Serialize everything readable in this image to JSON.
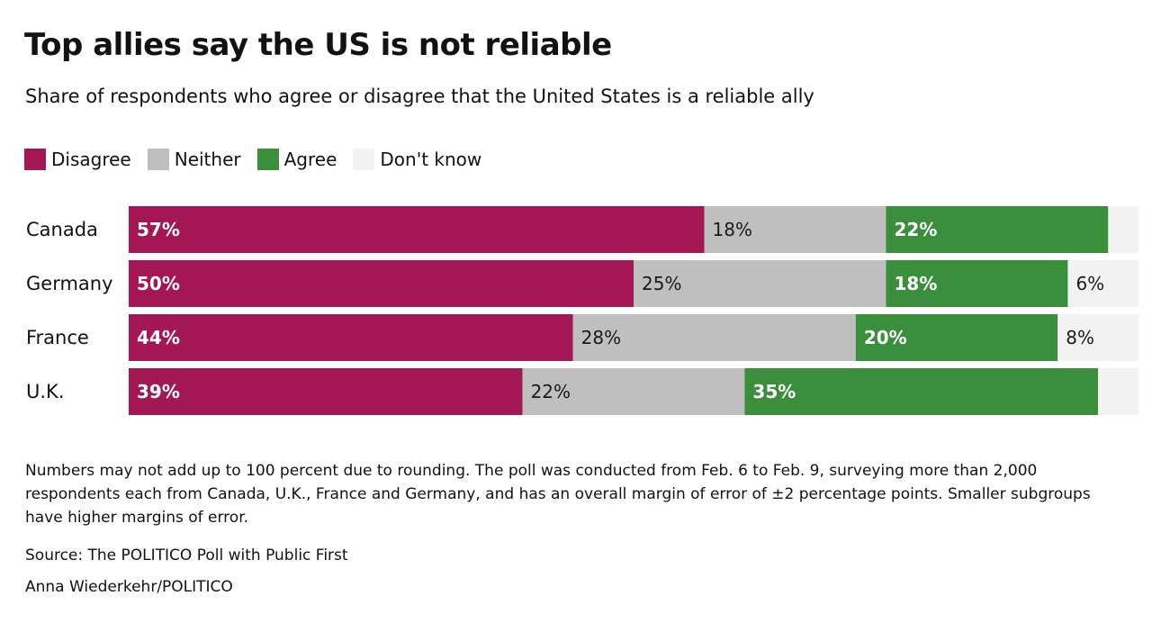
{
  "chart_data": {
    "type": "bar",
    "orientation": "horizontal",
    "stacked": true,
    "title": "Top allies say the US is not reliable",
    "subtitle": "Share of respondents who agree or disagree that the United States is a reliable ally",
    "categories": [
      "Canada",
      "Germany",
      "France",
      "U.K."
    ],
    "series": [
      {
        "name": "Disagree",
        "color": "#a31854",
        "label_color": "#ffffff",
        "values": [
          57,
          50,
          44,
          39
        ],
        "labels": [
          "57%",
          "50%",
          "44%",
          "39%"
        ]
      },
      {
        "name": "Neither",
        "color": "#bfbfbf",
        "label_color": "#1a1a1a",
        "values": [
          18,
          25,
          28,
          22
        ],
        "labels": [
          "18%",
          "25%",
          "28%",
          "22%"
        ]
      },
      {
        "name": "Agree",
        "color": "#3a8e3c",
        "label_color": "#ffffff",
        "values": [
          22,
          18,
          20,
          35
        ],
        "labels": [
          "22%",
          "18%",
          "20%",
          "35%"
        ]
      },
      {
        "name": "Don't know",
        "color": "#f2f2f2",
        "label_color": "#1a1a1a",
        "values": [
          3,
          6,
          8,
          4
        ],
        "labels": [
          "",
          "6%",
          "8%",
          ""
        ]
      }
    ],
    "xlim": [
      0,
      100
    ],
    "grid": false,
    "legend_position": "top-left"
  },
  "notes": "Numbers may not add up to 100 percent due to rounding. The poll was conducted from Feb. 6 to Feb. 9, surveying more than 2,000 respondents each from Canada, U.K., France and Germany, and has an overall margin of error of ±2 percentage points. Smaller subgroups have higher margins of error.",
  "source": "Source: The POLITICO Poll with Public First",
  "credit": "Anna Wiederkehr/POLITICO"
}
